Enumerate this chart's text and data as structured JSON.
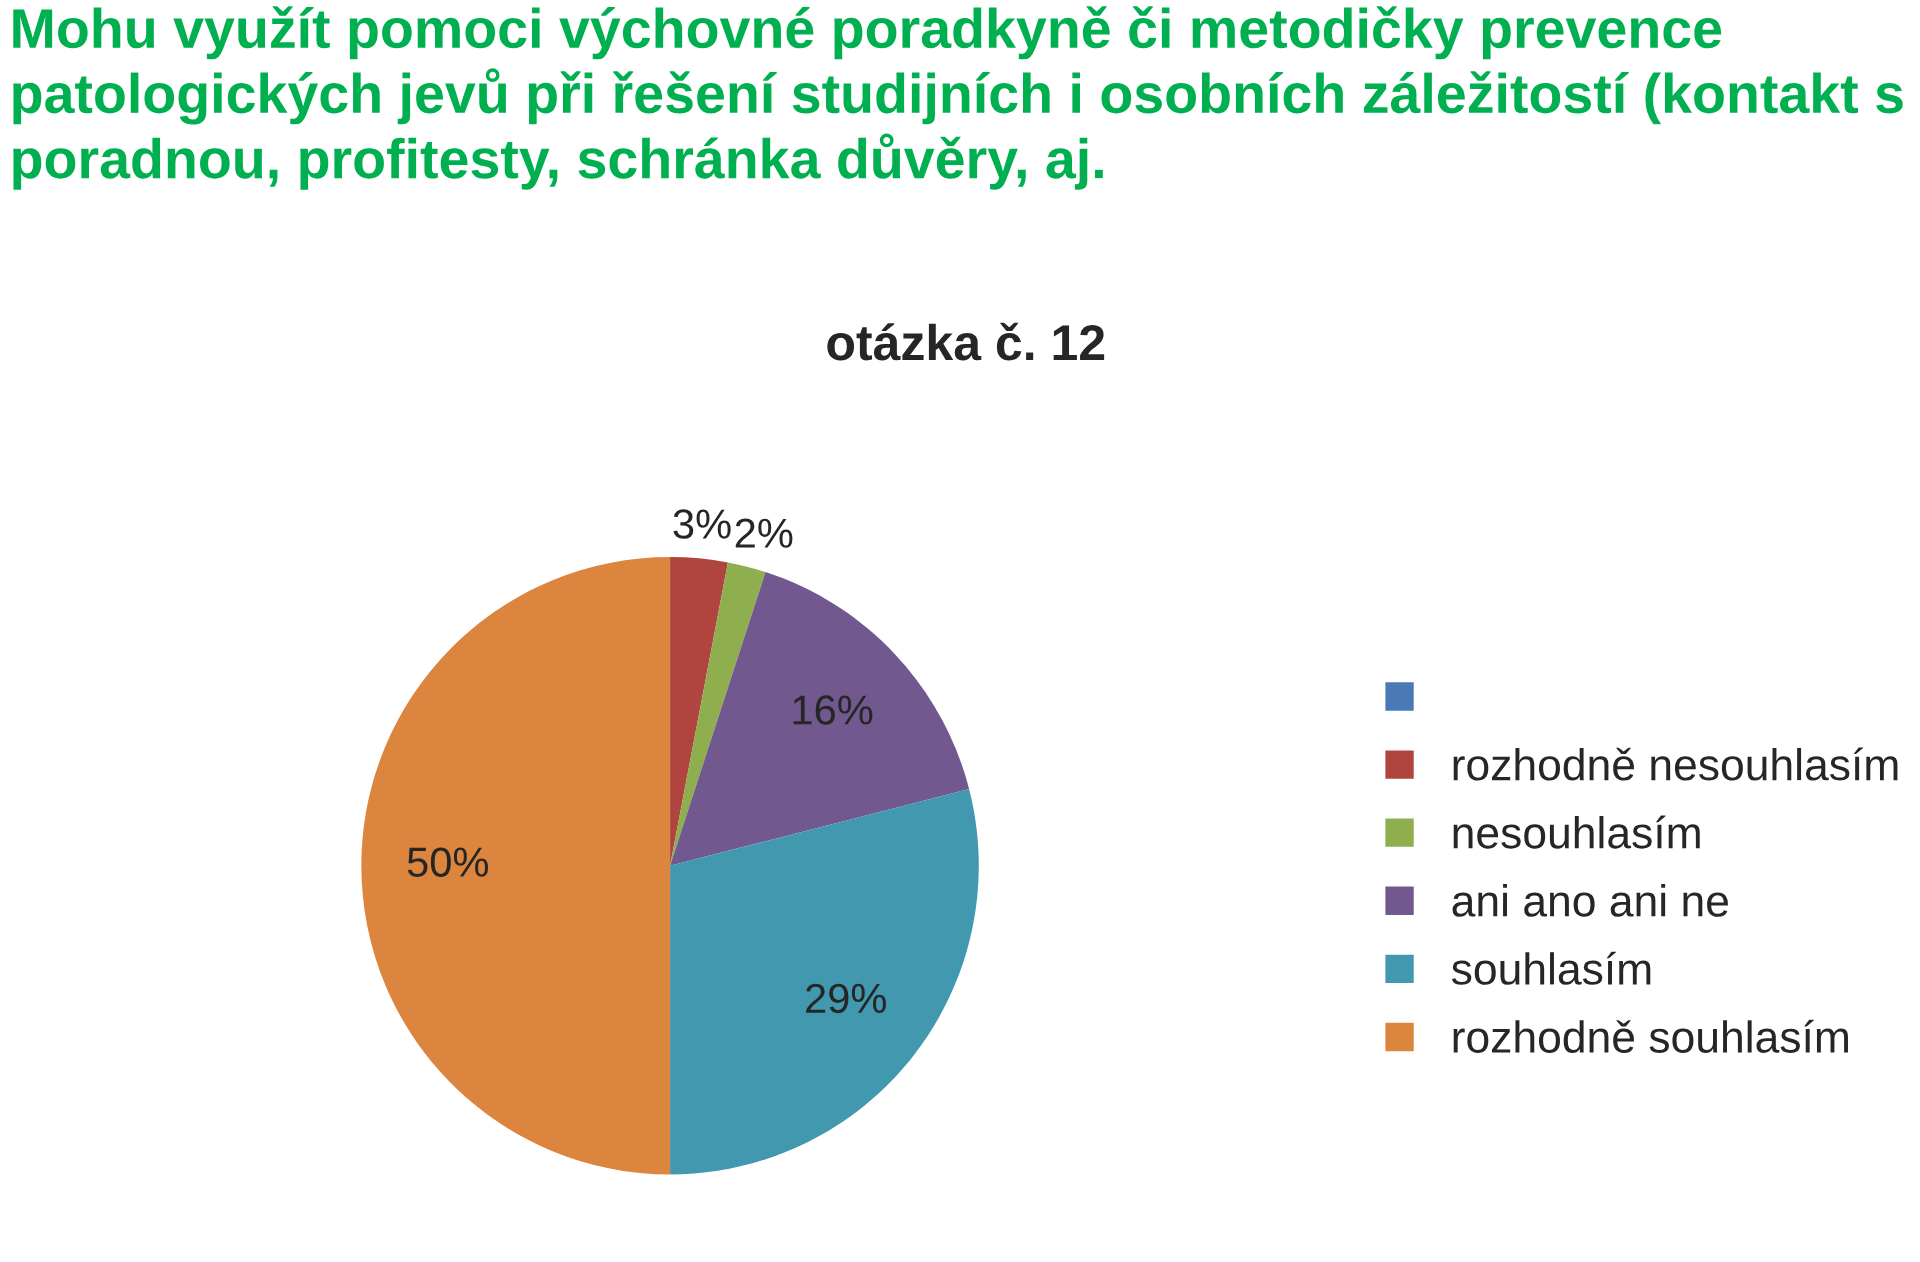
{
  "chart_data": {
    "type": "pie",
    "title": "Mohu využít pomoci výchovné poradkyně či metodičky prevence patologických jevů při řešení studijních i osobních záležitostí (kontakt s poradnou, profitesty, schránka důvěry, aj.",
    "subtitle": "otázka č. 12",
    "categories": [
      null,
      "rozhodně nesouhlasím",
      "nesouhlasím",
      "ani ano ani ne",
      "souhlasím",
      "rozhodně souhlasím"
    ],
    "values": [
      0,
      3,
      2,
      16,
      29,
      50
    ],
    "value_labels": [
      null,
      "3%",
      "2%",
      "16%",
      "29%",
      "50%"
    ],
    "colors": [
      "#4a7ab5",
      "#b0443f",
      "#8fae4e",
      "#71588f",
      "#4198af",
      "#dc853f"
    ],
    "legend": "right"
  }
}
